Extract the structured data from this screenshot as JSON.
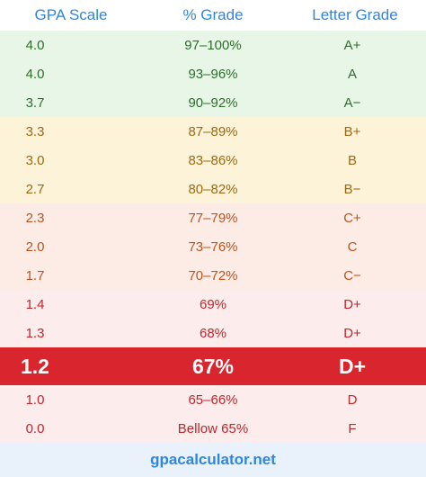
{
  "header": {
    "gpa": "GPA Scale",
    "percent": "% Grade",
    "letter": "Letter Grade"
  },
  "rows": [
    {
      "gpa": "4.0",
      "percent": "97–100%",
      "letter": "A+",
      "band": "green"
    },
    {
      "gpa": "4.0",
      "percent": "93–96%",
      "letter": "A",
      "band": "green"
    },
    {
      "gpa": "3.7",
      "percent": "90–92%",
      "letter": "A−",
      "band": "green"
    },
    {
      "gpa": "3.3",
      "percent": "87–89%",
      "letter": "B+",
      "band": "yellow"
    },
    {
      "gpa": "3.0",
      "percent": "83–86%",
      "letter": "B",
      "band": "yellow"
    },
    {
      "gpa": "2.7",
      "percent": "80–82%",
      "letter": "B−",
      "band": "yellow"
    },
    {
      "gpa": "2.3",
      "percent": "77–79%",
      "letter": "C+",
      "band": "orange"
    },
    {
      "gpa": "2.0",
      "percent": "73–76%",
      "letter": "C",
      "band": "orange"
    },
    {
      "gpa": "1.7",
      "percent": "70–72%",
      "letter": "C−",
      "band": "orange"
    },
    {
      "gpa": "1.4",
      "percent": "69%",
      "letter": "D+",
      "band": "red"
    },
    {
      "gpa": "1.3",
      "percent": "68%",
      "letter": "D+",
      "band": "red"
    },
    {
      "gpa": "1.2",
      "percent": "67%",
      "letter": "D+",
      "band": "highlight"
    },
    {
      "gpa": "1.0",
      "percent": "65–66%",
      "letter": "D",
      "band": "red"
    },
    {
      "gpa": "0.0",
      "percent": "Bellow 65%",
      "letter": "F",
      "band": "red"
    }
  ],
  "footer": {
    "site": "gpacalculator.net"
  },
  "colors": {
    "header_text": "#2e86de",
    "highlight_bg": "#d9262e"
  }
}
